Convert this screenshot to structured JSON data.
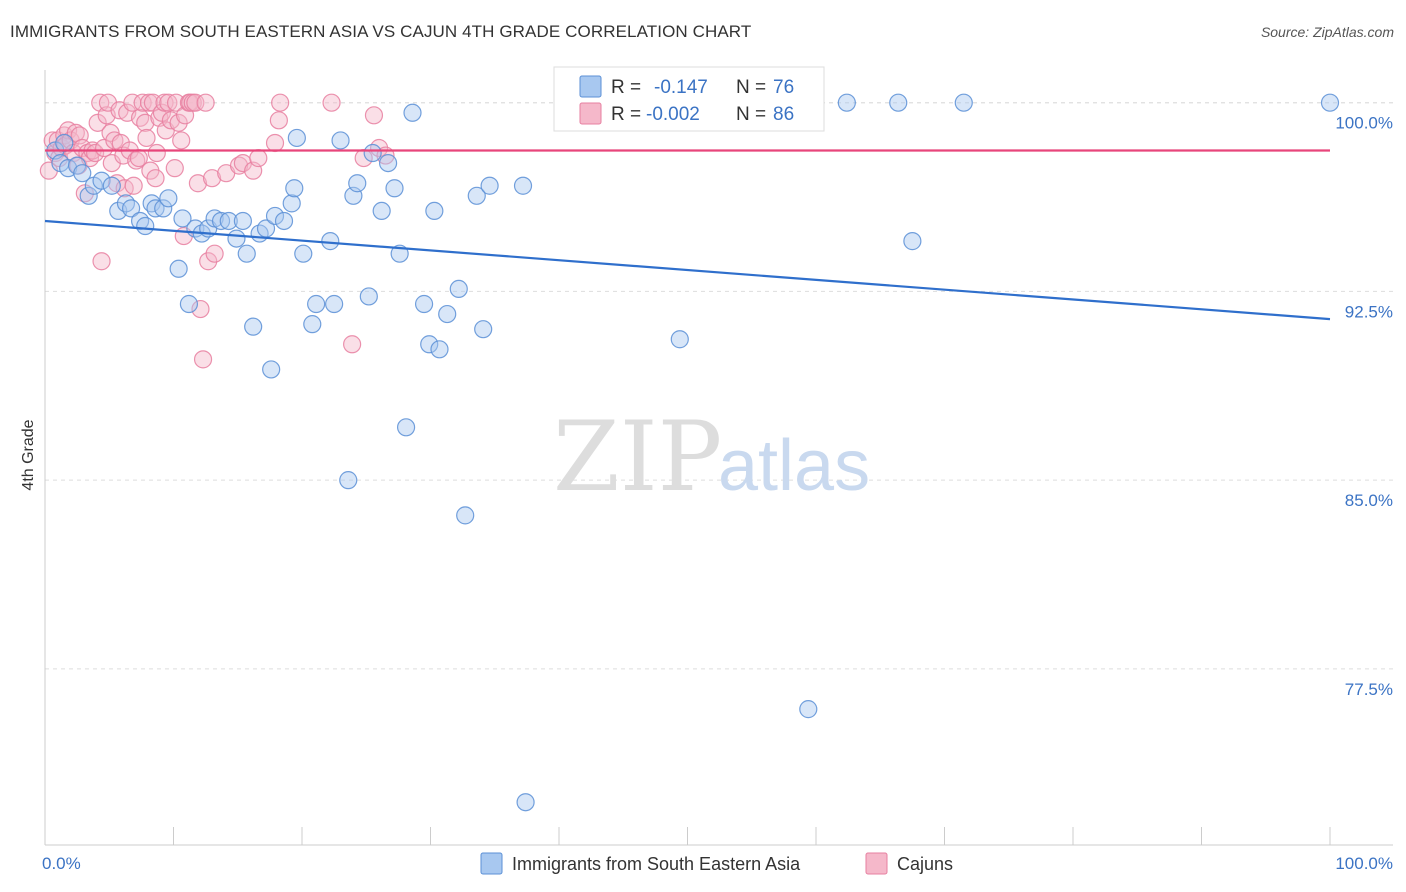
{
  "title": "IMMIGRANTS FROM SOUTH EASTERN ASIA VS CAJUN 4TH GRADE CORRELATION CHART",
  "source": "Source: ZipAtlas.com",
  "watermark": {
    "zip": "ZIP",
    "atlas": "atlas"
  },
  "colors": {
    "blue_fill": "#a8c8f0",
    "blue_stroke": "#5b8fd6",
    "blue_line": "#2f6fcc",
    "pink_fill": "#f5b8ca",
    "pink_stroke": "#e77fa0",
    "pink_line": "#e8457a",
    "grid": "#dddddd",
    "axis_text": "#3b73c4"
  },
  "legend": {
    "series1": {
      "r_label": "R =",
      "r_value": "-0.147",
      "n_label": "N =",
      "n_value": "76"
    },
    "series2": {
      "r_label": "R =",
      "r_value": "-0.002",
      "n_label": "N =",
      "n_value": "86"
    }
  },
  "chart_data": {
    "type": "scatter",
    "title": "IMMIGRANTS FROM SOUTH EASTERN ASIA VS CAJUN 4TH GRADE CORRELATION CHART",
    "xlabel": "",
    "ylabel": "4th Grade",
    "xlim": [
      0,
      100
    ],
    "ylim": [
      70.5,
      101.3
    ],
    "x_tick_labels": [
      "0.0%",
      "100.0%"
    ],
    "y_ticks": [
      100.0,
      92.5,
      85.0,
      77.5
    ],
    "y_tick_labels": [
      "100.0%",
      "92.5%",
      "85.0%",
      "77.5%"
    ],
    "legend_position": "top-center",
    "series": [
      {
        "name": "Immigrants from South Eastern Asia",
        "color": "blue",
        "trend": {
          "x": [
            0,
            100
          ],
          "y": [
            95.3,
            91.4
          ]
        },
        "points": [
          [
            0.8,
            98.1
          ],
          [
            1.2,
            97.6
          ],
          [
            1.5,
            98.4
          ],
          [
            1.8,
            97.4
          ],
          [
            2.5,
            97.5
          ],
          [
            2.9,
            97.2
          ],
          [
            3.4,
            96.3
          ],
          [
            3.8,
            96.7
          ],
          [
            4.4,
            96.9
          ],
          [
            5.2,
            96.7
          ],
          [
            5.7,
            95.7
          ],
          [
            6.3,
            96.0
          ],
          [
            6.7,
            95.8
          ],
          [
            7.4,
            95.3
          ],
          [
            7.8,
            95.1
          ],
          [
            8.3,
            96.0
          ],
          [
            8.6,
            95.8
          ],
          [
            9.2,
            95.8
          ],
          [
            9.6,
            96.2
          ],
          [
            10.4,
            93.4
          ],
          [
            10.7,
            95.4
          ],
          [
            11.2,
            92.0
          ],
          [
            11.7,
            95.0
          ],
          [
            12.2,
            94.8
          ],
          [
            12.7,
            95.0
          ],
          [
            13.2,
            95.4
          ],
          [
            13.7,
            95.3
          ],
          [
            14.3,
            95.3
          ],
          [
            14.9,
            94.6
          ],
          [
            15.4,
            95.3
          ],
          [
            15.7,
            94.0
          ],
          [
            16.2,
            91.1
          ],
          [
            16.7,
            94.8
          ],
          [
            17.2,
            95.0
          ],
          [
            17.6,
            89.4
          ],
          [
            17.9,
            95.5
          ],
          [
            18.6,
            95.3
          ],
          [
            19.2,
            96.0
          ],
          [
            19.4,
            96.6
          ],
          [
            19.6,
            98.6
          ],
          [
            20.1,
            94.0
          ],
          [
            20.8,
            91.2
          ],
          [
            21.1,
            92.0
          ],
          [
            22.2,
            94.5
          ],
          [
            22.5,
            92.0
          ],
          [
            23.0,
            98.5
          ],
          [
            23.6,
            85.0
          ],
          [
            24.0,
            96.3
          ],
          [
            24.3,
            96.8
          ],
          [
            25.2,
            92.3
          ],
          [
            25.5,
            98.0
          ],
          [
            26.2,
            95.7
          ],
          [
            26.7,
            97.6
          ],
          [
            27.2,
            96.6
          ],
          [
            27.6,
            94.0
          ],
          [
            28.1,
            87.1
          ],
          [
            28.6,
            99.6
          ],
          [
            29.5,
            92.0
          ],
          [
            29.9,
            90.4
          ],
          [
            30.3,
            95.7
          ],
          [
            30.7,
            90.2
          ],
          [
            31.3,
            91.6
          ],
          [
            32.2,
            92.6
          ],
          [
            32.7,
            83.6
          ],
          [
            33.6,
            96.3
          ],
          [
            34.1,
            91.0
          ],
          [
            34.6,
            96.7
          ],
          [
            37.2,
            96.7
          ],
          [
            37.4,
            72.2
          ],
          [
            49.4,
            90.6
          ],
          [
            59.4,
            75.9
          ],
          [
            62.4,
            100.0
          ],
          [
            66.4,
            100.0
          ],
          [
            67.5,
            94.5
          ],
          [
            71.5,
            100.0
          ],
          [
            100.0,
            100.0
          ]
        ]
      },
      {
        "name": "Cajuns",
        "color": "pink",
        "trend": {
          "x": [
            0,
            100
          ],
          "y": [
            98.1,
            98.1
          ]
        },
        "points": [
          [
            0.3,
            97.3
          ],
          [
            0.6,
            98.5
          ],
          [
            0.8,
            98.0
          ],
          [
            1.0,
            98.5
          ],
          [
            1.1,
            97.8
          ],
          [
            1.3,
            98.2
          ],
          [
            1.5,
            98.7
          ],
          [
            1.6,
            98.3
          ],
          [
            1.8,
            98.9
          ],
          [
            2.0,
            98.5
          ],
          [
            2.2,
            98.0
          ],
          [
            2.4,
            98.8
          ],
          [
            2.6,
            97.5
          ],
          [
            2.7,
            98.7
          ],
          [
            2.9,
            98.2
          ],
          [
            3.1,
            96.4
          ],
          [
            3.3,
            98.0
          ],
          [
            3.5,
            97.8
          ],
          [
            3.7,
            98.1
          ],
          [
            3.9,
            98.0
          ],
          [
            4.1,
            99.2
          ],
          [
            4.3,
            100.0
          ],
          [
            4.4,
            93.7
          ],
          [
            4.6,
            98.2
          ],
          [
            4.8,
            99.5
          ],
          [
            4.9,
            100.0
          ],
          [
            5.1,
            98.8
          ],
          [
            5.2,
            97.6
          ],
          [
            5.4,
            98.5
          ],
          [
            5.6,
            96.8
          ],
          [
            5.8,
            99.7
          ],
          [
            5.9,
            98.4
          ],
          [
            6.1,
            97.9
          ],
          [
            6.2,
            96.6
          ],
          [
            6.4,
            99.6
          ],
          [
            6.6,
            98.1
          ],
          [
            6.8,
            100.0
          ],
          [
            6.9,
            96.7
          ],
          [
            7.1,
            97.7
          ],
          [
            7.3,
            97.8
          ],
          [
            7.4,
            99.4
          ],
          [
            7.6,
            100.0
          ],
          [
            7.8,
            99.2
          ],
          [
            7.9,
            98.6
          ],
          [
            8.1,
            100.0
          ],
          [
            8.2,
            97.3
          ],
          [
            8.4,
            100.0
          ],
          [
            8.6,
            97.0
          ],
          [
            8.7,
            98.0
          ],
          [
            8.9,
            99.4
          ],
          [
            9.1,
            99.6
          ],
          [
            9.3,
            100.0
          ],
          [
            9.4,
            98.9
          ],
          [
            9.6,
            100.0
          ],
          [
            9.8,
            99.3
          ],
          [
            10.1,
            97.4
          ],
          [
            10.2,
            100.0
          ],
          [
            10.4,
            99.2
          ],
          [
            10.6,
            98.5
          ],
          [
            10.8,
            94.7
          ],
          [
            10.9,
            99.5
          ],
          [
            11.2,
            100.0
          ],
          [
            11.3,
            100.0
          ],
          [
            11.5,
            100.0
          ],
          [
            11.7,
            100.0
          ],
          [
            11.9,
            96.8
          ],
          [
            12.1,
            91.8
          ],
          [
            12.3,
            89.8
          ],
          [
            12.5,
            100.0
          ],
          [
            12.7,
            93.7
          ],
          [
            13.0,
            97.0
          ],
          [
            13.2,
            94.0
          ],
          [
            14.1,
            97.2
          ],
          [
            15.1,
            97.5
          ],
          [
            15.4,
            97.6
          ],
          [
            16.2,
            97.3
          ],
          [
            16.6,
            97.8
          ],
          [
            17.9,
            98.4
          ],
          [
            18.2,
            99.3
          ],
          [
            18.3,
            100.0
          ],
          [
            22.3,
            100.0
          ],
          [
            23.9,
            90.4
          ],
          [
            24.8,
            97.8
          ],
          [
            25.6,
            99.5
          ],
          [
            26.0,
            98.2
          ],
          [
            26.5,
            97.9
          ]
        ]
      }
    ]
  },
  "bottom_legend": {
    "series1_label": "Immigrants from South Eastern Asia",
    "series2_label": "Cajuns"
  }
}
